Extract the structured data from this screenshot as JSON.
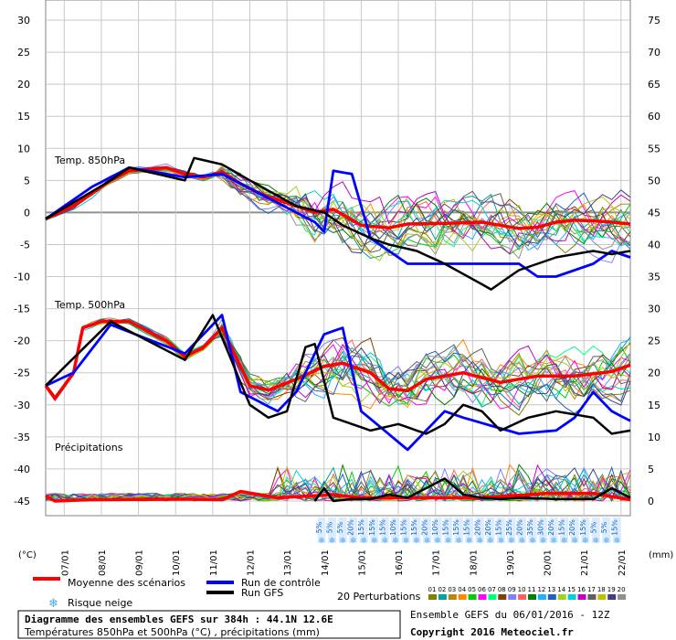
{
  "chart_data": {
    "type": "line",
    "title": "Diagramme des ensembles GEFS sur 384h : 44.1N 12.6E",
    "subtitle": "Températures 850hPa et 500hPa (°C) , précipitations (mm)",
    "run_info": "Ensemble GEFS du 06/01/2016 - 12Z",
    "copyright": "Copyright 2016 Meteociel.fr",
    "left_axis": {
      "unit": "(°C)",
      "min": -45,
      "max": 30,
      "ticks": [
        30,
        25,
        20,
        15,
        10,
        5,
        0,
        -5,
        -10,
        -15,
        -20,
        -25,
        -30,
        -35,
        -40,
        -45
      ]
    },
    "right_axis": {
      "unit": "(mm)",
      "min": 0,
      "max": 75,
      "ticks": [
        75,
        70,
        65,
        60,
        55,
        50,
        45,
        40,
        35,
        30,
        25,
        20,
        15,
        10,
        5,
        0
      ]
    },
    "x": {
      "start_hour": 6,
      "step_hours": 6,
      "last_hour": 384
    },
    "dates": [
      "07/01",
      "08/01",
      "09/01",
      "10/01",
      "11/01",
      "12/01",
      "13/01",
      "14/01",
      "15/01",
      "16/01",
      "17/01",
      "18/01",
      "19/01",
      "20/01",
      "21/01",
      "22/01"
    ],
    "panels": {
      "t850": "Temp. 850hPa",
      "t500": "Temp. 500hPa",
      "precip": "Précipitations"
    },
    "snow_risk_pct": [
      5,
      5,
      5,
      20,
      15,
      15,
      15,
      10,
      15,
      15,
      20,
      10,
      15,
      15,
      15,
      20,
      20,
      15,
      25,
      20,
      35,
      30,
      20,
      15,
      20,
      15,
      5,
      5,
      15
    ],
    "legend": {
      "mean": "Moyenne des scénarios",
      "control": "Run de contrôle",
      "gfs": "Run GFS",
      "snow": "Risque neige",
      "perturbations": "20 Perturbations",
      "perturbation_ids": [
        "01",
        "02",
        "03",
        "04",
        "05",
        "06",
        "07",
        "08",
        "09",
        "10",
        "11",
        "12",
        "13",
        "14",
        "15",
        "16",
        "17",
        "18",
        "19",
        "20"
      ]
    },
    "colors": {
      "mean": "#ff0000",
      "control": "#0000ff",
      "gfs": "#000000",
      "snow": "#4aa8f0",
      "perturbations": [
        "#7f7f00",
        "#00a0a0",
        "#b8860b",
        "#ff8800",
        "#00cc00",
        "#ff00ff",
        "#00ff80",
        "#804000",
        "#8080ff",
        "#ff6060",
        "#008000",
        "#20b0ff",
        "#2060c0",
        "#a0d020",
        "#00d0d0",
        "#c000c0",
        "#606060",
        "#c0c000",
        "#404080",
        "#909090"
      ]
    },
    "series": [
      {
        "name": "Moyenne des scénarios",
        "panel": "t850",
        "kx": [
          6,
          24,
          48,
          60,
          84,
          96,
          108,
          120,
          132,
          144,
          168,
          180,
          192,
          210,
          228,
          240,
          264,
          288,
          312,
          324,
          336,
          348,
          360,
          372,
          384
        ],
        "ky": [
          -1,
          1,
          5,
          6.5,
          7,
          6,
          5.5,
          6.3,
          4.5,
          3,
          1,
          0,
          0.5,
          -2,
          -2.4,
          -1.8,
          -1.7,
          -1.5,
          -2.5,
          -2.3,
          -1.5,
          -1.2,
          -1.3,
          -1.5,
          -1.8
        ]
      },
      {
        "name": "Moyenne des scénarios",
        "panel": "t500",
        "kx": [
          6,
          12,
          24,
          30,
          42,
          60,
          84,
          96,
          108,
          120,
          138,
          150,
          168,
          186,
          198,
          216,
          228,
          240,
          252,
          276,
          300,
          324,
          348,
          372,
          384
        ],
        "ky": [
          -27,
          -29,
          -25,
          -18,
          -17,
          -17,
          -20,
          -22.5,
          -21,
          -18,
          -27,
          -27.7,
          -26,
          -24,
          -23.5,
          -25,
          -27.5,
          -27.8,
          -26,
          -25,
          -26.5,
          -25.5,
          -25.5,
          -24.8,
          -23.8
        ]
      },
      {
        "name": "Moyenne des scénarios",
        "panel": "precip",
        "kx": [
          6,
          12,
          36,
          96,
          120,
          132,
          156,
          192,
          210,
          240,
          288,
          330,
          360,
          384
        ],
        "ky": [
          0.8,
          0,
          0.2,
          0.3,
          0.2,
          1.5,
          0.5,
          1,
          0.5,
          0.5,
          0.5,
          1.2,
          1.2,
          0.2
        ]
      },
      {
        "name": "Run de contrôle",
        "panel": "t850",
        "kx": [
          6,
          36,
          60,
          96,
          120,
          144,
          168,
          180,
          186,
          192,
          204,
          216,
          240,
          264,
          288,
          312,
          324,
          336,
          348,
          360,
          372,
          384
        ],
        "ky": [
          -1,
          4,
          7,
          5.5,
          6,
          3,
          0,
          -1.5,
          -3,
          6.5,
          6,
          -4,
          -8,
          -8,
          -8,
          -8,
          -10,
          -10,
          -9,
          -8,
          -6,
          -7
        ]
      },
      {
        "name": "Run de contrôle",
        "panel": "t500",
        "kx": [
          6,
          24,
          48,
          96,
          120,
          132,
          156,
          168,
          186,
          198,
          210,
          240,
          264,
          276,
          312,
          336,
          348,
          360,
          372,
          384
        ],
        "ky": [
          -27,
          -25,
          -17.5,
          -22,
          -16,
          -28,
          -31,
          -28,
          -19,
          -18,
          -31,
          -37,
          -31,
          -32,
          -34.5,
          -34,
          -32,
          -28,
          -31,
          -32.5
        ]
      },
      {
        "name": "Run GFS",
        "panel": "t850",
        "kx": [
          6,
          48,
          60,
          96,
          102,
          120,
          138,
          168,
          186,
          198,
          216,
          228,
          246,
          264,
          294,
          300,
          312,
          336,
          360,
          372,
          384
        ],
        "ky": [
          -1,
          5,
          7,
          5,
          8.5,
          7.5,
          5,
          1,
          0,
          -2,
          -4,
          -5,
          -6,
          -8,
          -12,
          -11,
          -9,
          -7,
          -6,
          -6.5,
          -6
        ]
      },
      {
        "name": "Run GFS",
        "panel": "t500",
        "kx": [
          6,
          48,
          96,
          114,
          138,
          150,
          162,
          174,
          180,
          192,
          216,
          234,
          252,
          264,
          276,
          288,
          300,
          318,
          336,
          348,
          360,
          372,
          384
        ],
        "ky": [
          -27,
          -17,
          -23,
          -16,
          -30,
          -32,
          -31,
          -21,
          -20.5,
          -32,
          -34,
          -33,
          -34.5,
          -33,
          -30,
          -31,
          -34,
          -32,
          -31,
          -31.5,
          -32,
          -34.5,
          -34
        ]
      },
      {
        "name": "Run GFS",
        "panel": "precip",
        "kx": [
          180,
          186,
          192,
          204,
          216,
          228,
          240,
          252,
          264,
          276,
          288,
          300,
          312,
          336,
          360,
          372,
          384
        ],
        "ky": [
          0,
          2,
          0,
          0.3,
          0.3,
          1,
          0.5,
          2,
          3.5,
          1,
          0.5,
          0.3,
          0.5,
          0.3,
          0.3,
          2,
          0.5
        ]
      }
    ]
  }
}
